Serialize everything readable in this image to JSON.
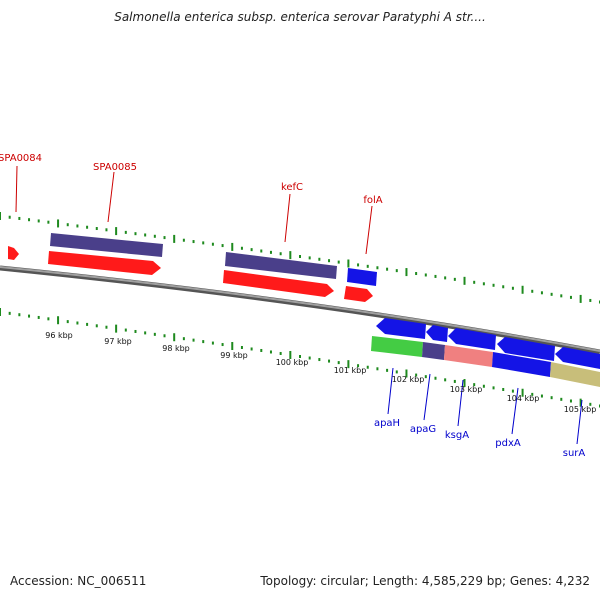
{
  "title": "Salmonella enterica subsp. enterica serovar Paratyphi A str....",
  "accession": "Accession: NC_006511",
  "topology": "Topology: circular; Length: 4,585,229 bp; Genes: 4,232",
  "colors": {
    "backbone": "#7a7a7a",
    "tick": "#1e8a1e",
    "upper_label": "#cc0000",
    "lower_label": "#0000cc",
    "cds_red": "#ff1a1a",
    "cds_purple": "#4a3f8a",
    "cds_blue": "#1414e6",
    "green": "#44cc44",
    "pink": "#f08080",
    "khaki": "#c8be7a"
  },
  "scale_labels": [
    "96 kbp",
    "97 kbp",
    "98 kbp",
    "99 kbp",
    "100 kbp",
    "101 kbp",
    "102 kbp",
    "103 kbp",
    "104 kbp",
    "105 kbp"
  ],
  "upper_genes": [
    "SPA0084",
    "SPA0085",
    "kefC",
    "folA"
  ],
  "lower_genes": [
    "apaH",
    "apaG",
    "ksgA",
    "pdxA",
    "surA"
  ]
}
